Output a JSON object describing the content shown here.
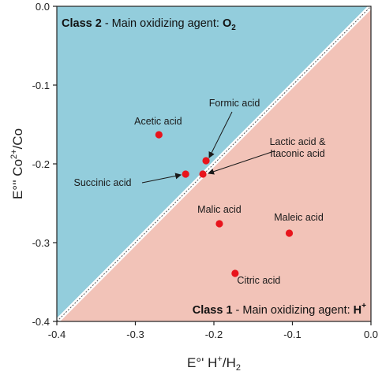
{
  "chart_data": {
    "type": "scatter",
    "xlabel": {
      "main": "E°' H",
      "sup": "+",
      "mid": "/H",
      "sub": "2"
    },
    "ylabel": {
      "main": "E°'' Co",
      "sup": "2+",
      "tail": "/Co"
    },
    "xlim": [
      -0.4,
      0.0
    ],
    "ylim": [
      -0.4,
      0.0
    ],
    "x_ticks": [
      "-0.4",
      "-0.3",
      "-0.2",
      "-0.1",
      "0.0"
    ],
    "y_ticks": [
      "-0.4",
      "-0.3",
      "-0.2",
      "-0.1",
      "0.0"
    ],
    "regions": [
      {
        "id": "class2",
        "color": "#93cddc",
        "bold": "Class 2",
        "text": " - Main oxidizing agent: ",
        "agent": "O",
        "agent_sub": "2",
        "agent_sup": ""
      },
      {
        "id": "class1",
        "color": "#f2c3b8",
        "bold": "Class 1",
        "text": " - Main oxidizing agent: ",
        "agent": "H",
        "agent_sub": "",
        "agent_sup": "+"
      }
    ],
    "diagonal_color": "#ffffff",
    "point_color": "#e8141c",
    "points": [
      {
        "name": "Acetic acid",
        "x": -0.27,
        "y": -0.163
      },
      {
        "name": "Formic acid",
        "x": -0.21,
        "y": -0.196
      },
      {
        "name": "Succinic acid",
        "x": -0.236,
        "y": -0.213
      },
      {
        "name": "Lactic acid & Itaconic acid",
        "x": -0.214,
        "y": -0.213
      },
      {
        "name": "Malic acid",
        "x": -0.193,
        "y": -0.276
      },
      {
        "name": "Maleic acid",
        "x": -0.104,
        "y": -0.288
      },
      {
        "name": "Citric acid",
        "x": -0.173,
        "y": -0.339
      }
    ],
    "labels": {
      "acetic": "Acetic acid",
      "formic": "Formic acid",
      "succinic": "Succinic acid",
      "lactic_line1": "Lactic acid &",
      "lactic_line2": "Itaconic acid",
      "malic": "Malic acid",
      "maleic": "Maleic acid",
      "citric": "Citric acid"
    }
  }
}
